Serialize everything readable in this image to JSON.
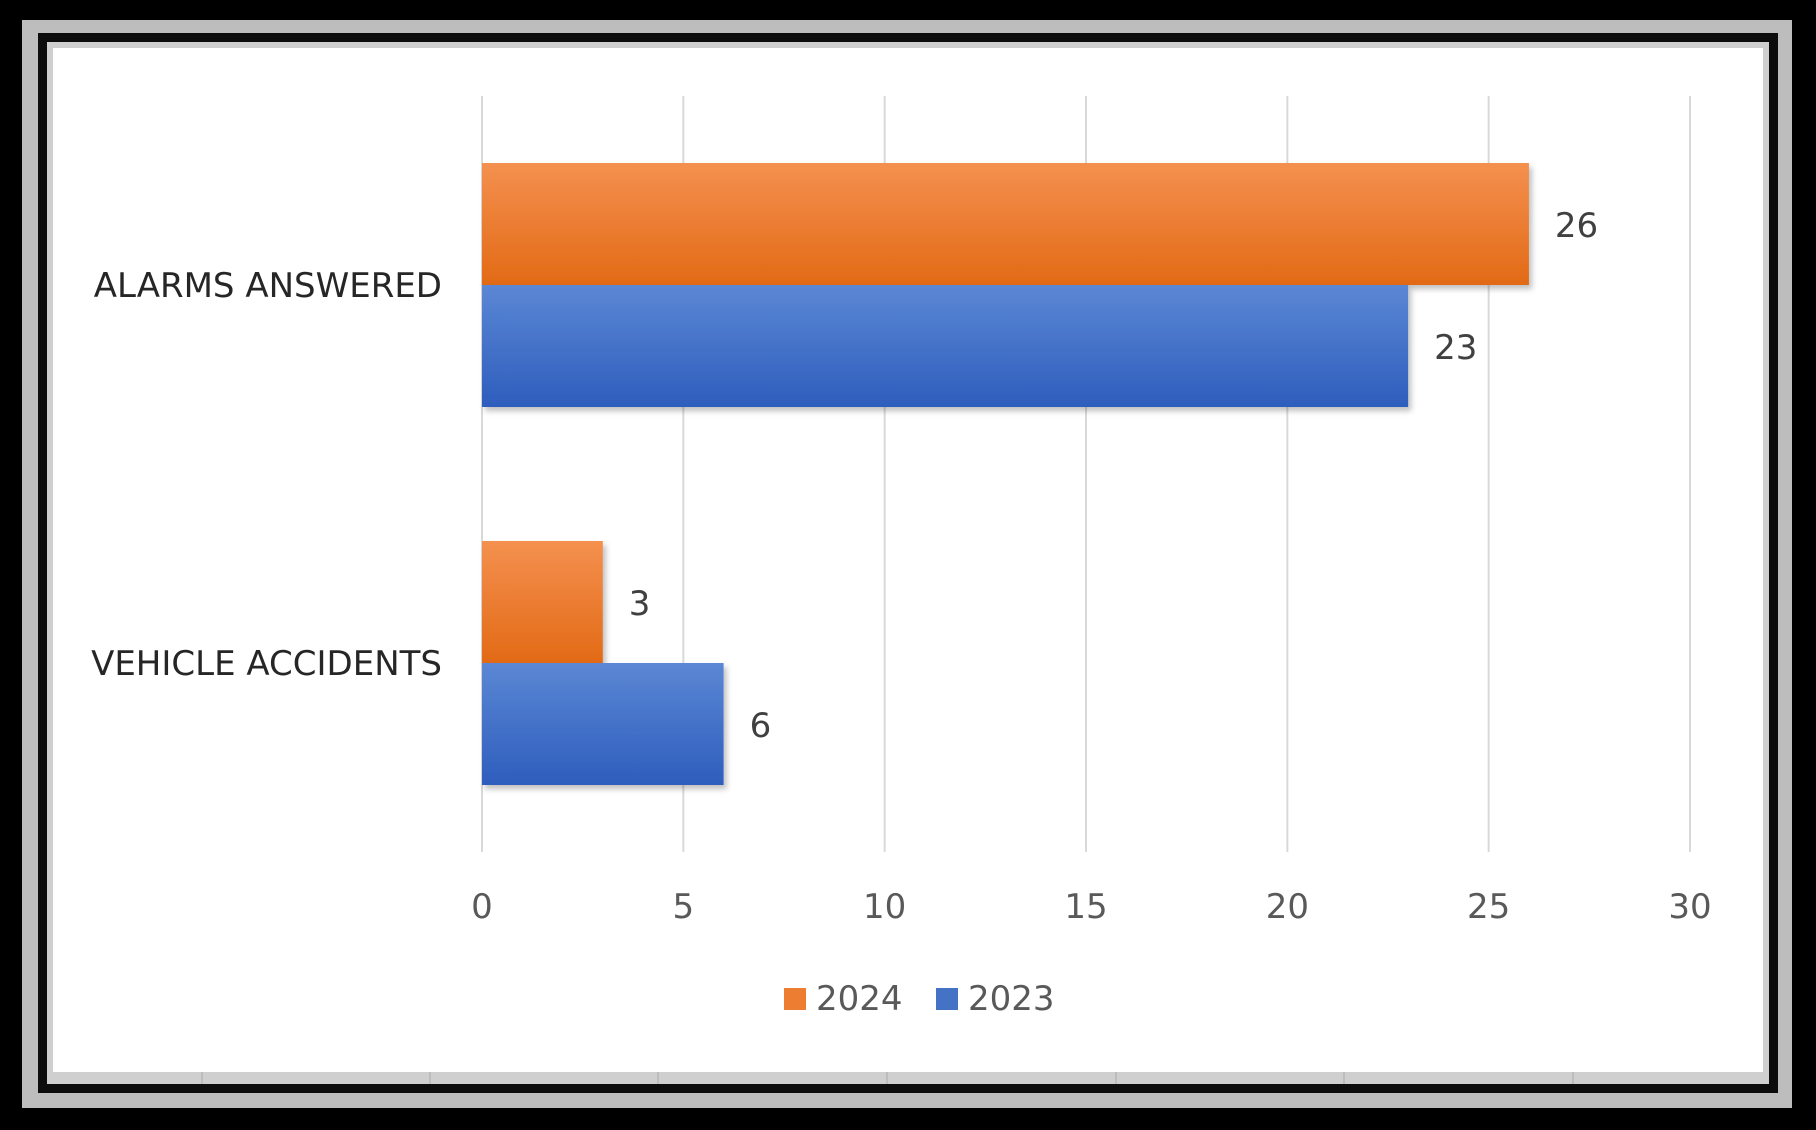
{
  "chart_data": {
    "type": "bar",
    "orientation": "horizontal",
    "title": "",
    "xlabel": "",
    "ylabel": "",
    "categories": [
      "ALARMS ANSWERED",
      "VEHICLE ACCIDENTS"
    ],
    "series": [
      {
        "name": "2024",
        "color": "#ED7D31",
        "values": [
          26,
          3
        ]
      },
      {
        "name": "2023",
        "color": "#4472C4",
        "values": [
          23,
          6
        ]
      }
    ],
    "xlim": [
      0,
      30
    ],
    "x_ticks": [
      0,
      5,
      10,
      15,
      20,
      25,
      30
    ],
    "grid": true,
    "data_labels": true,
    "legend_position": "bottom"
  }
}
